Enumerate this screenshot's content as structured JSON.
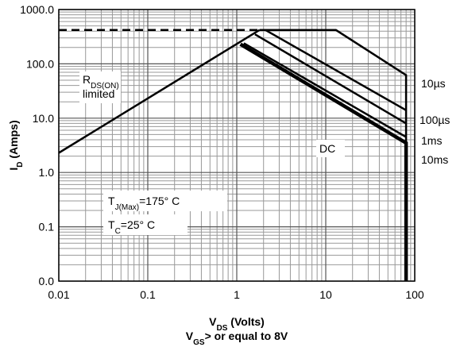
{
  "chart_data": {
    "type": "line",
    "log_x": true,
    "log_y": true,
    "grid": true,
    "minor_grid": true,
    "xlim": [
      0.01,
      100
    ],
    "xticks": [
      0.01,
      0.1,
      1,
      10,
      100
    ],
    "ylim": [
      0.01,
      1000
    ],
    "yticks": [
      {
        "value": 1000,
        "label": "1000.0"
      },
      {
        "value": 100,
        "label": "100.0"
      },
      {
        "value": 10,
        "label": "10.0"
      },
      {
        "value": 1,
        "label": "1.0"
      },
      0.1,
      {
        "value": 0.01,
        "label": "0.0"
      }
    ],
    "x_label": [
      {
        "text": "V"
      },
      {
        "text": "DS",
        "sub": true
      },
      {
        "text": " (Volts)"
      }
    ],
    "y_label": [
      {
        "text": "I"
      },
      {
        "text": "D",
        "sub": true
      },
      {
        "text": " (Amps)"
      }
    ],
    "subtitle": [
      {
        "text": "V"
      },
      {
        "text": "GS",
        "sub": true
      },
      {
        "text": "> or equal to 8V"
      }
    ],
    "series": [
      {
        "color": "#000000",
        "dashed": true,
        "x": [
          0.01,
          1.8
        ],
        "values": [
          420,
          420
        ]
      },
      {
        "color": "#000000",
        "x": [
          0.01,
          1.8
        ],
        "values": [
          2.3,
          420
        ]
      },
      {
        "name": "10µs",
        "color": "#000000",
        "x": [
          1.8,
          13,
          80,
          80
        ],
        "values": [
          420,
          420,
          62,
          0.01
        ]
      },
      {
        "name": "100µs",
        "color": "#000000",
        "x": [
          2.1,
          80
        ],
        "values": [
          420,
          14
        ]
      },
      {
        "name": "1ms",
        "color": "#000000",
        "x": [
          1.6,
          80
        ],
        "values": [
          350,
          8
        ]
      },
      {
        "name": "10ms",
        "color": "#000000",
        "x": [
          1.2,
          80
        ],
        "values": [
          240,
          4.5
        ]
      },
      {
        "color": "#000000",
        "thick": true,
        "x": [
          1.1,
          80,
          80
        ],
        "values": [
          230,
          3.5,
          0.01
        ]
      }
    ],
    "annotations": [
      {
        "lines": [
          [
            {
              "text": "R"
            },
            {
              "text": "DS(ON)",
              "sub": true
            }
          ],
          [
            {
              "text": "limited"
            }
          ]
        ]
      },
      {
        "lines": [
          [
            {
              "text": "DC"
            }
          ]
        ]
      },
      {
        "lines": [
          [
            {
              "text": "T"
            },
            {
              "text": "J(Max)",
              "sub": true
            },
            {
              "text": "=175° C"
            }
          ]
        ]
      },
      {
        "lines": [
          [
            {
              "text": "T"
            },
            {
              "text": "C",
              "sub": true
            },
            {
              "text": "=25° C"
            }
          ]
        ]
      }
    ]
  }
}
